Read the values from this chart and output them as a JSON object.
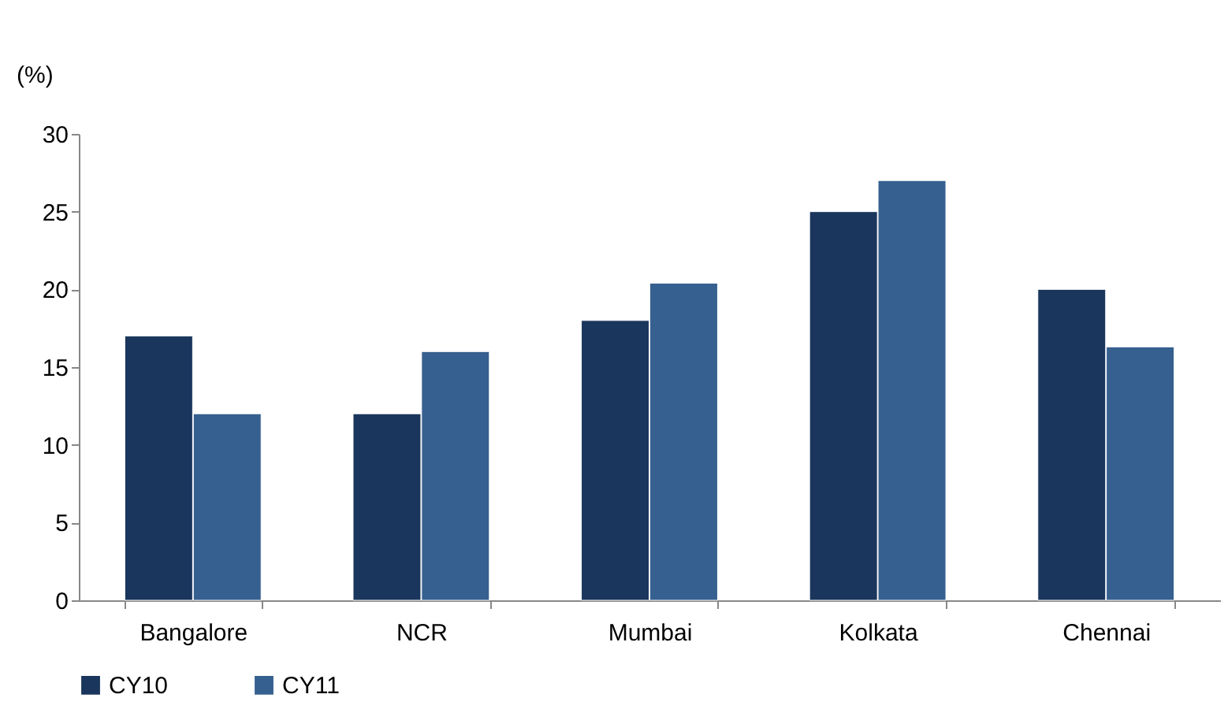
{
  "chart_data": {
    "type": "bar",
    "ylabel": "(%)",
    "categories": [
      "Bangalore",
      "NCR",
      "Mumbai",
      "Kolkata",
      "Chennai"
    ],
    "series": [
      {
        "name": "CY10",
        "color": "#1a365d",
        "values": [
          17,
          12,
          18,
          25,
          20
        ]
      },
      {
        "name": "CY11",
        "color": "#36608f",
        "values": [
          12,
          16,
          20.4,
          27,
          16.3
        ]
      }
    ],
    "ylim": [
      0,
      30
    ],
    "yticks": [
      0,
      5,
      10,
      15,
      20,
      25,
      30
    ],
    "grid": false,
    "legend": "bottom"
  }
}
